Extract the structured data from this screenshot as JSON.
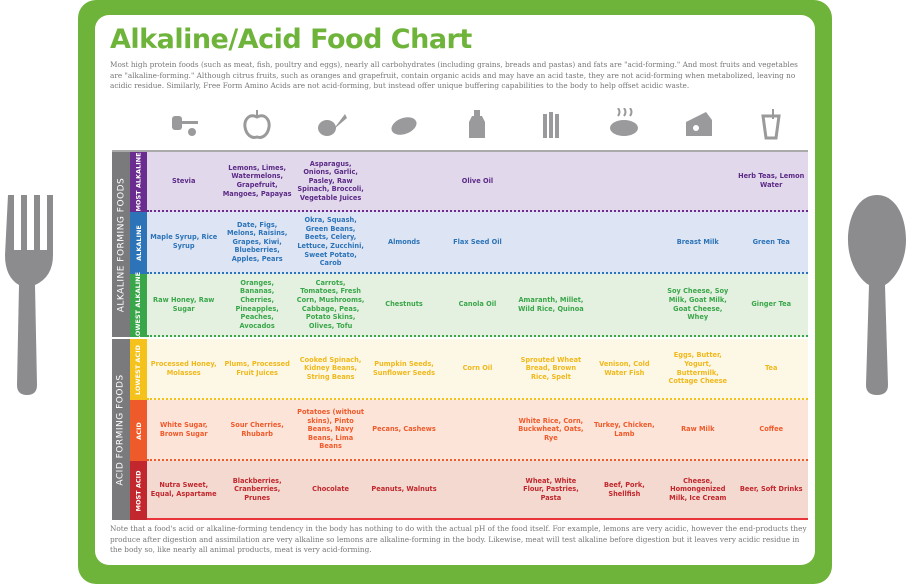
{
  "title": "Alkaline/Acid Food Chart",
  "intro": "Most high protein foods (such as meat, fish, poultry and eggs), nearly all carbohydrates (including grains, breads and pastas) and fats are \"acid-forming.\" And most fruits and vegetables are \"alkaline-forming.\" Although citrus fruits, such as oranges and grapefruit, contain organic acids and may have an acid taste, they are not acid-forming when metabolized, leaving no acidic residue. Similarly, Free Form Amino Acids are not acid-forming, but instead offer unique buffering capabilities to the body to help offset acidic waste.",
  "note": "Note that a food's acid or alkaline-forming tendency in the body has nothing to do with the actual pH of the food itself. For example, lemons are very acidic, however the end-products they produce after digestion and assimilation are very alkaline so lemons are alkaline-forming in the body. Likewise, meat will test alkaline before digestion but it leaves very acidic residue in the body so, like nearly all animal products, meat is very acid-forming.",
  "column_icons": [
    "honey-dipper-icon",
    "apple-icon",
    "vegetables-icon",
    "nut-icon",
    "oil-bottle-icon",
    "grain-icon",
    "steak-icon",
    "cheese-icon",
    "beverage-icon"
  ],
  "groups": [
    {
      "label": "ALKALINE FORMING FOODS"
    },
    {
      "label": "ACID FORMING FOODS"
    }
  ],
  "rows": [
    {
      "label": "MOST ALKALINE",
      "band": "#6a2d8f",
      "bg": "#e2d8ec",
      "text": "#5b2a86",
      "cells": [
        "Stevia",
        "Lemons, Limes, Watermelons, Grapefruit, Mangoes, Papayas",
        "Asparagus, Onions, Garlic, Pasley, Raw Spinach, Broccoli, Vegetable Juices",
        "",
        "Olive Oil",
        "",
        "",
        "",
        "Herb Teas, Lemon Water"
      ]
    },
    {
      "label": "ALKALINE",
      "band": "#2c73b8",
      "bg": "#dde5f4",
      "text": "#2c73b8",
      "cells": [
        "Maple Syrup, Rice Syrup",
        "Date, Figs, Melons, Raisins, Grapes, Kiwi, Blueberries, Apples, Pears",
        "Okra, Squash, Green Beans, Beets, Celery, Lettuce, Zucchini, Sweet Potato, Carob",
        "Almonds",
        "Flax Seed Oil",
        "",
        "",
        "Breast Milk",
        "Green Tea"
      ]
    },
    {
      "label": "LOWEST ALKALINE",
      "band": "#3aa64a",
      "bg": "#e4f1e0",
      "text": "#3aa64a",
      "cells": [
        "Raw Honey, Raw Sugar",
        "Oranges, Bananas, Cherries, Pineapples, Peaches, Avocados",
        "Carrots, Tomatoes, Fresh Corn, Mushrooms, Cabbage, Peas, Potato Skins, Olives, Tofu",
        "Chestnuts",
        "Canola Oil",
        "Amaranth, Millet, Wild Rice, Quinoa",
        "",
        "Soy Cheese, Soy Milk, Goat Milk, Goat Cheese, Whey",
        "Ginger Tea"
      ]
    },
    {
      "label": "LOWEST ACID",
      "band": "#f5c21b",
      "bg": "#fdf7e6",
      "text": "#f0b91a",
      "cells": [
        "Processed Honey, Molasses",
        "Plums, Processed Fruit Juices",
        "Cooked Spinach, Kidney Beans, String Beans",
        "Pumpkin Seeds, Sunflower Seeds",
        "Corn Oil",
        "Sprouted Wheat Bread, Brown Rice, Spelt",
        "Venison, Cold Water Fish",
        "Eggs, Butter, Yogurt, Buttermilk, Cottage Cheese",
        "Tea"
      ]
    },
    {
      "label": "ACID",
      "band": "#ef5a2a",
      "bg": "#fde4d9",
      "text": "#ef5a2a",
      "cells": [
        "White Sugar, Brown Sugar",
        "Sour Cherries, Rhubarb",
        "Potatoes (without skins), Pinto Beans, Navy Beans, Lima Beans",
        "Pecans, Cashews",
        "",
        "White Rice, Corn, Buckwheat, Oats, Rye",
        "Turkey, Chicken, Lamb",
        "Raw Milk",
        "Coffee"
      ]
    },
    {
      "label": "MOST ACID",
      "band": "#c1272d",
      "bg": "#f3d9cf",
      "text": "#c1272d",
      "cells": [
        "Nutra Sweet, Equal, Aspartame",
        "Blackberries, Cranberries, Prunes",
        "Chocolate",
        "Peanuts, Walnuts",
        "",
        "Wheat, White Flour, Pastries, Pasta",
        "Beef, Pork, Shellfish",
        "Cheese, Homongenized Milk, Ice Cream",
        "Beer, Soft Drinks"
      ]
    }
  ],
  "colors": {
    "frame": "#6fb43a",
    "group": "#7a7a7c",
    "utensil": "#8c8c8e"
  }
}
